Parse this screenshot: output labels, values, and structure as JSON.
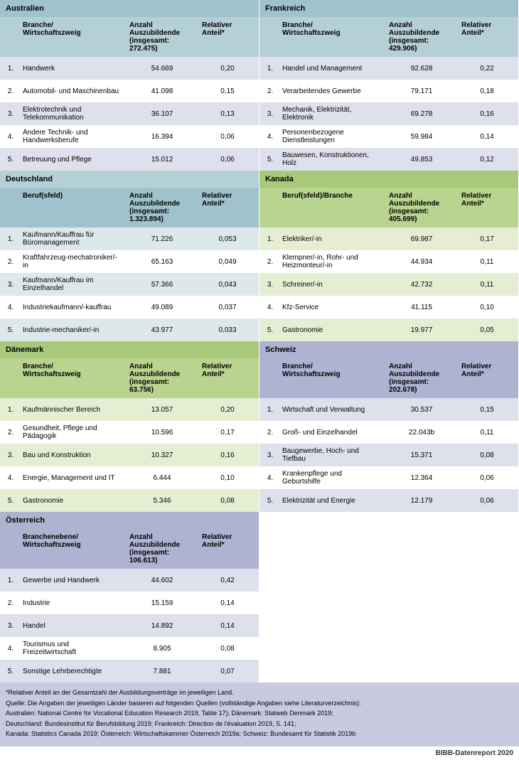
{
  "colors": {
    "blueHeader": "#b5cfd6",
    "blueHeader2": "#9fc2cc",
    "greenHeader": "#b9d48e",
    "greenHeader2": "#a8c97a",
    "purpleHeader": "#aeb3d1",
    "lightPurpleRow": "#dee0ec",
    "lightBlueRow": "#dde8eb",
    "lightGreenRow": "#e5eed2",
    "white": "#ffffff"
  },
  "countries": [
    {
      "name": "Australien",
      "headerColor": "blueHeader2",
      "subColor": "blueHeader",
      "rowColor": "lightPurpleRow",
      "col1": "Branche/\nWirtschaftszweig",
      "col2": "Anzahl Auszubildende (insgesamt: 272.475)",
      "col3": "Relativer Anteil*",
      "rows": [
        {
          "n": "1.",
          "label": "Handwerk",
          "val": "54.669",
          "share": "0,20"
        },
        {
          "n": "2.",
          "label": "Automobil- und Maschinenbau",
          "val": "41.098",
          "share": "0,15"
        },
        {
          "n": "3.",
          "label": "Elektrotechnik und Telekommunikation",
          "val": "36.107",
          "share": "0,13"
        },
        {
          "n": "4.",
          "label": "Andere Technik- und Handwerksberufe",
          "val": "16.394",
          "share": "0,06"
        },
        {
          "n": "5.",
          "label": "Betreuung und Pflege",
          "val": "15.012",
          "share": "0,06"
        }
      ]
    },
    {
      "name": "Frankreich",
      "headerColor": "blueHeader2",
      "subColor": "blueHeader",
      "rowColor": "lightPurpleRow",
      "col1": "Branche/\nWirtschaftszweig",
      "col2": "Anzahl Auszubildende (insgesamt: 429.906)",
      "col3": "Relativer Anteil*",
      "rows": [
        {
          "n": "1.",
          "label": "Handel und Management",
          "val": "92.628",
          "share": "0,22"
        },
        {
          "n": "2.",
          "label": "Verarbeitendes Gewerbe",
          "val": "79.171",
          "share": "0,18"
        },
        {
          "n": "3.",
          "label": "Mechanik, Elektrizität, Elektronik",
          "val": "69.278",
          "share": "0,16"
        },
        {
          "n": "4.",
          "label": "Personenbezogene Dienstleistungen",
          "val": "59.984",
          "share": "0,14"
        },
        {
          "n": "5.",
          "label": "Bauwesen, Konstruktionen, Holz",
          "val": "49.853",
          "share": "0,12"
        }
      ]
    },
    {
      "name": "Deutschland",
      "headerColor": "blueHeader",
      "subColor": "blueHeader2",
      "rowColor": "lightBlueRow",
      "col1": "Beruf(sfeld)",
      "col2": "Anzahl Auszubildende (insgesamt: 1.323.894)",
      "col3": "Relativer Anteil*",
      "rows": [
        {
          "n": "1.",
          "label": "Kaufmann/Kauffrau für Büromanagement",
          "val": "71.226",
          "share": "0,053"
        },
        {
          "n": "2.",
          "label": "Kraftfahrzeug-mechatroniker/-in",
          "val": "65.163",
          "share": "0,049"
        },
        {
          "n": "3.",
          "label": "Kaufmann/Kauffrau im Einzelhandel",
          "val": "57.366",
          "share": "0,043"
        },
        {
          "n": "4.",
          "label": "Industriekaufmann/-kauffrau",
          "val": "49.089",
          "share": "0,037"
        },
        {
          "n": "5.",
          "label": "Industrie-mechaniker/-in",
          "val": "43.977",
          "share": "0,033"
        }
      ]
    },
    {
      "name": "Kanada",
      "headerColor": "greenHeader2",
      "subColor": "greenHeader",
      "rowColor": "lightGreenRow",
      "col1": "Beruf(sfeld)/Branche",
      "col2": "Anzahl Auszubildende (insgesamt: 405.699)",
      "col3": "Relativer Anteil*",
      "rows": [
        {
          "n": "1.",
          "label": "Elektriker/-in",
          "val": "69.987",
          "share": "0,17"
        },
        {
          "n": "2.",
          "label": "Klempner/-in, Rohr- und Heizmonteur/-in",
          "val": "44.934",
          "share": "0,11"
        },
        {
          "n": "3.",
          "label": "Schreiner/-in",
          "val": "42.732",
          "share": "0,11"
        },
        {
          "n": "4.",
          "label": "Kfz-Service",
          "val": "41.115",
          "share": "0,10"
        },
        {
          "n": "5.",
          "label": "Gastronomie",
          "val": "19.977",
          "share": "0,05"
        }
      ]
    },
    {
      "name": "Dänemark",
      "headerColor": "greenHeader2",
      "subColor": "greenHeader",
      "rowColor": "lightGreenRow",
      "col1": "Branche/\nWirtschaftszweig",
      "col2": "Anzahl Auszubildende (insgesamt: 63.756)",
      "col3": "Relativer Anteil*",
      "rows": [
        {
          "n": "1.",
          "label": "Kaufmännischer Bereich",
          "val": "13.057",
          "share": "0,20"
        },
        {
          "n": "2.",
          "label": "Gesundheit, Pflege und Pädagogik",
          "val": "10.596",
          "share": "0,17"
        },
        {
          "n": "3.",
          "label": "Bau und Konstruktion",
          "val": "10.327",
          "share": "0,16"
        },
        {
          "n": "4.",
          "label": "Energie, Management und IT",
          "val": "6.444",
          "share": "0,10"
        },
        {
          "n": "5.",
          "label": "Gastronomie",
          "val": "5.346",
          "share": "0,08"
        }
      ]
    },
    {
      "name": "Schweiz",
      "headerColor": "purpleHeader",
      "subColor": "purpleHeader",
      "rowColor": "lightPurpleRow",
      "col1": "Branche/\nWirtschaftszweig",
      "col2": "Anzahl Auszubildende (insgesamt: 202.678)",
      "col3": "Relativer Anteil*",
      "rows": [
        {
          "n": "1.",
          "label": "Wirtschaft und Verwaltung",
          "val": "30.537",
          "share": "0,15"
        },
        {
          "n": "2.",
          "label": "Groß- und Einzelhandel",
          "val": "22.043b",
          "share": "0,11"
        },
        {
          "n": "3.",
          "label": "Baugewerbe, Hoch- und Tiefbau",
          "val": "15.371",
          "share": "0,08"
        },
        {
          "n": "4.",
          "label": "Krankenpflege und Geburtshilfe",
          "val": "12.364",
          "share": "0,06"
        },
        {
          "n": "5.",
          "label": "Elektrizität und Energie",
          "val": "12.179",
          "share": "0,06"
        }
      ]
    },
    {
      "name": "Österreich",
      "headerColor": "purpleHeader",
      "subColor": "purpleHeader",
      "rowColor": "lightPurpleRow",
      "col1": "Branchenebene/\nWirtschaftszweig",
      "col2": "Anzahl Auszubildende (insgesamt: 106.613)",
      "col3": "Relativer Anteil*",
      "rows": [
        {
          "n": "1.",
          "label": "Gewerbe und Handwerk",
          "val": "44.602",
          "share": "0,42"
        },
        {
          "n": "2.",
          "label": "Industrie",
          "val": "15.159",
          "share": "0,14"
        },
        {
          "n": "3.",
          "label": "Handel",
          "val": "14.892",
          "share": "0,14"
        },
        {
          "n": "4.",
          "label": "Tourismus und Freizeitwirtschaft",
          "val": "8.905",
          "share": "0,08"
        },
        {
          "n": "5.",
          "label": "Sonstige Lehrberechtigte",
          "val": "7.881",
          "share": "0,07"
        }
      ]
    }
  ],
  "footnotes": [
    "*Relativer Anteil an der Gesamtzahl der Ausbildungsverträge im jeweiligen Land.",
    "Quelle: Die Angaben der jeweiligen Länder basieren auf folgenden Quellen (vollständige Angaben siehe Literaturverzeichnis):",
    "Australien: National Centre for Vocational Education Research 2019, Table 17); Dänemark: Statweb Denmark 2019;",
    "Deutschland: Bundesinstitut für Berufsbildung 2019; Frankreich: Direction de l'évaluation 2019, S. 141;",
    "Kanada: Statistics Canada 2019; Österreich: Wirtschaftskammer Österreich 2019a; Schweiz: Bundesamt für Statistik 2019b"
  ],
  "footer": "BIBB-Datenreport 2020"
}
